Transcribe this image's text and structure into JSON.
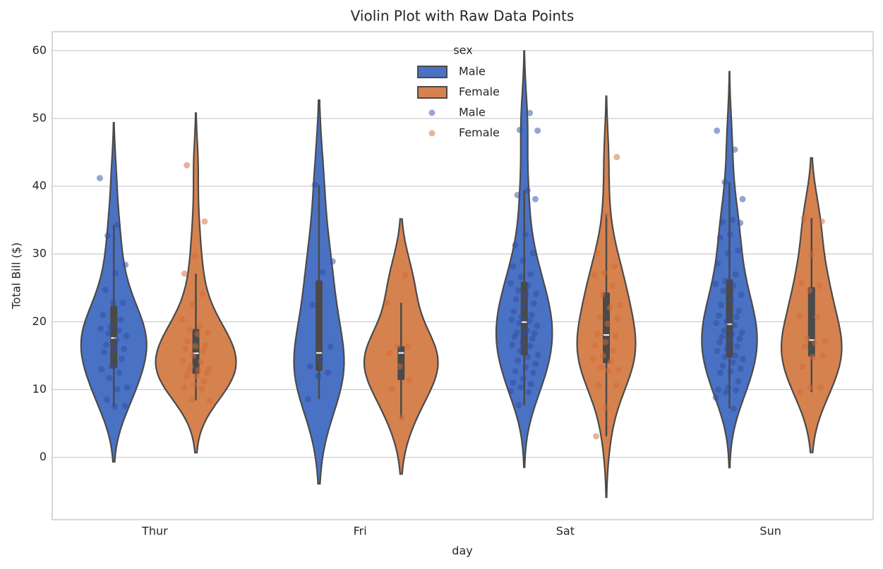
{
  "chart_data": {
    "type": "violin",
    "title": "Violin Plot with Raw Data Points",
    "x_label": "day",
    "y_label": "Total Bill ($)",
    "categories": [
      "Thur",
      "Fri",
      "Sat",
      "Sun"
    ],
    "legend_title": "sex",
    "legend_position": "upper center",
    "grid": true,
    "ylim": [
      -9.2,
      62.8
    ],
    "yticks": [
      0,
      10,
      20,
      30,
      40,
      50,
      60
    ],
    "series": [
      {
        "name": "Male",
        "color": "#4a72c4",
        "point_color": "#2f4b9f",
        "values": [
          [
            41.2,
            34.3,
            32.7,
            28.4,
            27.2,
            24.7,
            22.8,
            22.8,
            21.0,
            20.3,
            19.2,
            19.0,
            18.7,
            18.3,
            17.9,
            17.3,
            16.6,
            16.0,
            15.9,
            15.5,
            14.5,
            13.5,
            13.0,
            12.5,
            11.7,
            10.3,
            10.0,
            8.5,
            7.6,
            7.5
          ],
          [
            40.2,
            28.9,
            27.3,
            22.5,
            16.3,
            14.5,
            13.4,
            12.5,
            12.0,
            8.6
          ],
          [
            50.8,
            48.3,
            48.2,
            39.4,
            38.7,
            38.1,
            32.9,
            31.3,
            30.1,
            29.0,
            28.2,
            27.0,
            26.6,
            25.7,
            25.3,
            24.6,
            24.1,
            24.0,
            23.3,
            22.7,
            22.4,
            21.5,
            21.0,
            20.7,
            20.3,
            20.1,
            19.8,
            19.4,
            18.7,
            18.4,
            18.3,
            18.2,
            17.8,
            17.5,
            16.9,
            16.6,
            16.4,
            15.7,
            15.1,
            14.8,
            14.3,
            13.8,
            13.3,
            12.7,
            12.5,
            11.6,
            11.0,
            10.8,
            10.3,
            9.8,
            9.6,
            7.7
          ],
          [
            48.2,
            45.4,
            40.6,
            38.1,
            35.0,
            34.7,
            34.6,
            32.9,
            32.4,
            30.5,
            30.1,
            28.6,
            27.0,
            26.0,
            25.6,
            25.3,
            24.6,
            24.0,
            23.3,
            22.5,
            21.6,
            21.0,
            20.9,
            20.7,
            20.0,
            19.8,
            19.5,
            18.7,
            18.4,
            18.2,
            17.8,
            17.5,
            17.3,
            17.0,
            16.4,
            16.0,
            15.7,
            15.0,
            14.8,
            14.5,
            14.0,
            13.5,
            13.1,
            12.7,
            12.5,
            11.2,
            10.3,
            10.0,
            9.9,
            9.6,
            8.8,
            7.2
          ]
        ]
      },
      {
        "name": "Female",
        "color": "#d6824f",
        "point_color": "#cf6a35",
        "values": [
          [
            43.1,
            34.8,
            29.8,
            27.1,
            24.1,
            22.5,
            20.3,
            19.4,
            18.8,
            18.4,
            18.2,
            17.1,
            16.5,
            16.4,
            16.0,
            15.7,
            15.0,
            14.3,
            14.1,
            13.4,
            13.0,
            12.9,
            12.7,
            12.4,
            12.0,
            11.9,
            11.2,
            10.7,
            10.3,
            10.1,
            8.5,
            8.4
          ],
          [
            5.8,
            10.1,
            11.4,
            13.4,
            15.4,
            16.3,
            16.4,
            22.8,
            26.9
          ],
          [
            44.3,
            35.8,
            30.1,
            28.2,
            27.2,
            26.9,
            25.3,
            24.0,
            22.4,
            22.1,
            20.7,
            20.5,
            19.7,
            18.2,
            17.9,
            17.0,
            16.5,
            15.8,
            15.0,
            14.5,
            14.1,
            13.3,
            12.9,
            12.8,
            10.6,
            10.6,
            7.3,
            3.1
          ],
          [
            35.3,
            34.8,
            29.9,
            25.7,
            25.3,
            24.6,
            20.9,
            20.7,
            17.5,
            17.1,
            16.9,
            16.4,
            15.0,
            14.8,
            13.4,
            10.3,
            10.3,
            9.6
          ]
        ]
      }
    ]
  }
}
